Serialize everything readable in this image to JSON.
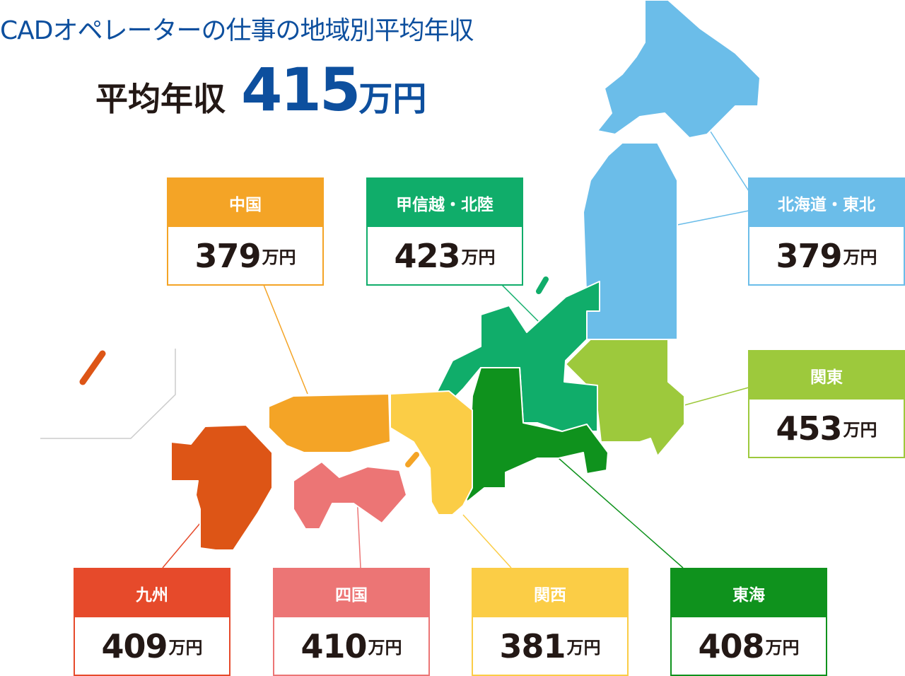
{
  "title": "CADオペレーターの仕事の地域別平均年収",
  "average": {
    "label": "平均年収",
    "value": "415",
    "unit": "万円"
  },
  "regions": [
    {
      "name": "中国",
      "value": "379",
      "unit": "万円",
      "color": "#f4a426"
    },
    {
      "name": "甲信越・北陸",
      "value": "423",
      "unit": "万円",
      "color": "#10ad6a"
    },
    {
      "name": "北海道・東北",
      "value": "379",
      "unit": "万円",
      "color": "#6bbde9"
    },
    {
      "name": "関東",
      "value": "453",
      "unit": "万円",
      "color": "#9dc93c"
    },
    {
      "name": "九州",
      "value": "409",
      "unit": "万円",
      "color": "#e64a2b"
    },
    {
      "name": "四国",
      "value": "410",
      "unit": "万円",
      "color": "#ec7575"
    },
    {
      "name": "関西",
      "value": "381",
      "unit": "万円",
      "color": "#fbcd46"
    },
    {
      "name": "東海",
      "value": "408",
      "unit": "万円",
      "color": "#0f921d"
    }
  ]
}
